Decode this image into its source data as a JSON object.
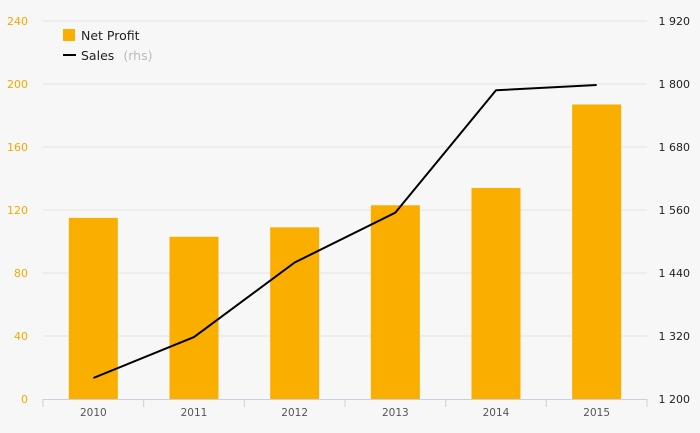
{
  "chart_data": {
    "type": "bar",
    "categories": [
      "2010",
      "2011",
      "2012",
      "2013",
      "2014",
      "2015"
    ],
    "series": [
      {
        "name": "Net Profit",
        "type": "bar",
        "axis": "left",
        "color": "#f9ae00",
        "values": [
          115,
          103,
          109,
          123,
          134,
          187
        ]
      },
      {
        "name": "Sales",
        "axis_note": "(rhs)",
        "type": "line",
        "axis": "right",
        "color": "#000000",
        "values": [
          1240,
          1318,
          1460,
          1555,
          1788,
          1798
        ]
      }
    ],
    "y_left": {
      "range": [
        0,
        240
      ],
      "ticks": [
        "0",
        "40",
        "80",
        "120",
        "160",
        "200",
        "240"
      ],
      "color": "#f0ab00"
    },
    "y_right": {
      "range": [
        1200,
        1920
      ],
      "ticks": [
        "1 200",
        "1 320",
        "1 440",
        "1 560",
        "1 680",
        "1 800",
        "1 920"
      ],
      "color": "#222222"
    },
    "grid": true,
    "legend": "top-left"
  }
}
